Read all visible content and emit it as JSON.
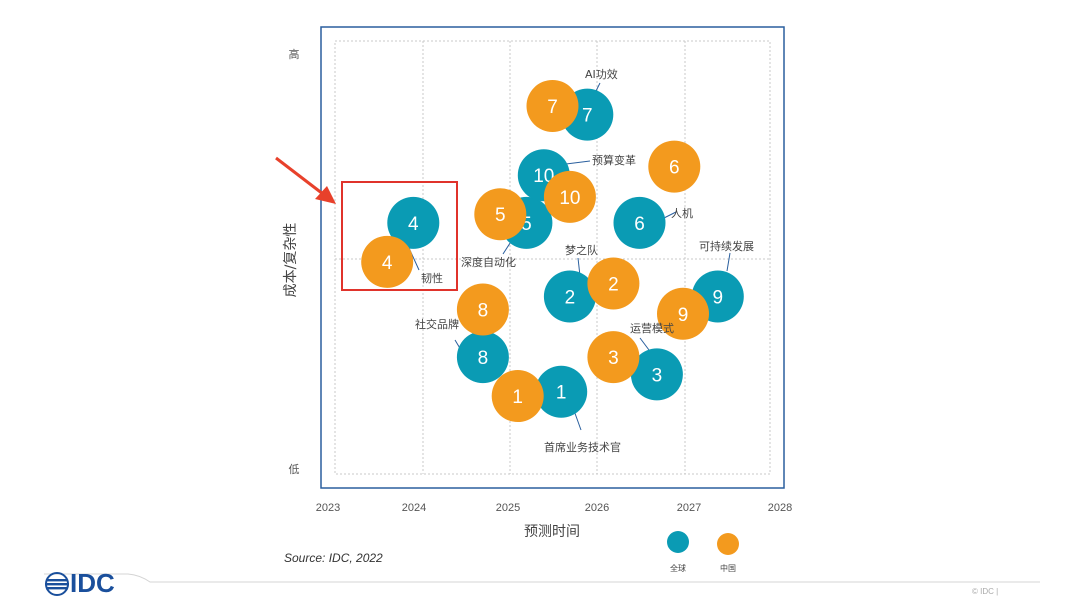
{
  "chart_data": {
    "type": "scatter",
    "xlabel": "预测时间",
    "ylabel": "成本/复杂性",
    "xlim": [
      2023,
      2028
    ],
    "x_ticks": [
      "2023",
      "2024",
      "2025",
      "2026",
      "2027",
      "2028"
    ],
    "y_tick_labels": {
      "high": "高",
      "low": "低"
    },
    "ylim": [
      0,
      100
    ],
    "grid": true,
    "legend_position": "bottom-right",
    "series": [
      {
        "name": "全球",
        "color": "#0a9bb4",
        "points": [
          {
            "id": "4",
            "x": 2023.9,
            "y": 58
          },
          {
            "id": "5",
            "x": 2025.2,
            "y": 58
          },
          {
            "id": "7",
            "x": 2025.9,
            "y": 83
          },
          {
            "id": "10",
            "x": 2025.4,
            "y": 69
          },
          {
            "id": "6",
            "x": 2026.5,
            "y": 58
          },
          {
            "id": "2",
            "x": 2025.7,
            "y": 41
          },
          {
            "id": "9",
            "x": 2027.4,
            "y": 41
          },
          {
            "id": "8",
            "x": 2024.7,
            "y": 27
          },
          {
            "id": "3",
            "x": 2026.7,
            "y": 23
          },
          {
            "id": "1",
            "x": 2025.6,
            "y": 19
          }
        ]
      },
      {
        "name": "中国",
        "color": "#f39a1e",
        "points": [
          {
            "id": "4",
            "x": 2023.6,
            "y": 49
          },
          {
            "id": "5",
            "x": 2024.9,
            "y": 60
          },
          {
            "id": "7",
            "x": 2025.5,
            "y": 85
          },
          {
            "id": "10",
            "x": 2025.7,
            "y": 64
          },
          {
            "id": "6",
            "x": 2026.9,
            "y": 71
          },
          {
            "id": "2",
            "x": 2026.2,
            "y": 44
          },
          {
            "id": "9",
            "x": 2027.0,
            "y": 37
          },
          {
            "id": "8",
            "x": 2024.7,
            "y": 38
          },
          {
            "id": "3",
            "x": 2026.2,
            "y": 27
          },
          {
            "id": "1",
            "x": 2025.1,
            "y": 18
          }
        ]
      }
    ],
    "annotations": [
      {
        "id": "1",
        "label": "首席业务技术官"
      },
      {
        "id": "2",
        "label": "梦之队"
      },
      {
        "id": "3",
        "label": "运营模式"
      },
      {
        "id": "4",
        "label": "韧性"
      },
      {
        "id": "5",
        "label": "深度自动化"
      },
      {
        "id": "6",
        "label": "人机"
      },
      {
        "id": "7",
        "label": "AI功效"
      },
      {
        "id": "8",
        "label": "社交品牌"
      },
      {
        "id": "9",
        "label": "可持续发展"
      },
      {
        "id": "10",
        "label": "预算变革"
      }
    ],
    "highlight": {
      "target": "4",
      "style": "red box with arrow"
    }
  },
  "footer": {
    "source": "Source: IDC, 2022",
    "logo": "IDC",
    "copyright": "© IDC |"
  }
}
